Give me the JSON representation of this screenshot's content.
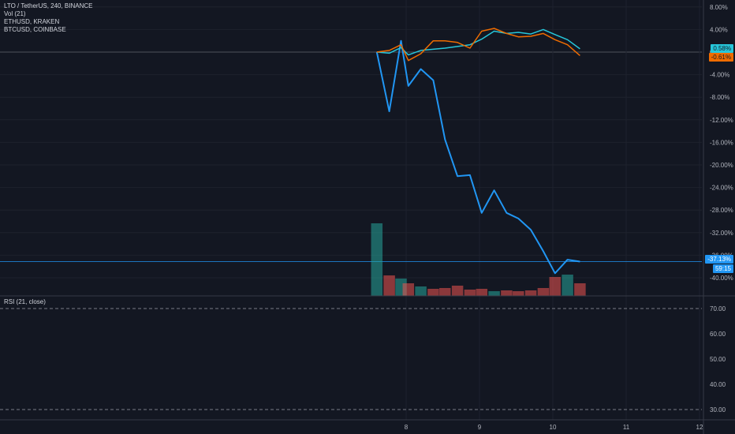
{
  "legend": {
    "main": "LTO / TetherUS, 240, BINANCE",
    "vol": "Vol (21)",
    "s1": "ETHUSD, KRAKEN",
    "s2": "BTCUSD, COINBASE"
  },
  "rsi_label": "RSI (21, close)",
  "badges": {
    "eth": "0.58%",
    "btc": "-0.61%",
    "lto": "-37.13%",
    "countdown": "59:15"
  },
  "colors": {
    "background": "#131722",
    "lto": "#2196f3",
    "eth": "#26c6da",
    "btc": "#ef6c00",
    "vol_up": "#26a69a",
    "vol_down": "#ef5350"
  },
  "chart_data": {
    "type": "line",
    "x_ticks": [
      "8",
      "9",
      "10",
      "11",
      "12"
    ],
    "y_ticks": [
      "8.00%",
      "4.00%",
      "0.00%",
      "-4.00%",
      "-8.00%",
      "-12.00%",
      "-16.00%",
      "-20.00%",
      "-24.00%",
      "-28.00%",
      "-32.00%",
      "-36.00%",
      "-40.00%"
    ],
    "ylim": [
      -42,
      9
    ],
    "x": [
      7.6,
      7.77,
      7.93,
      8.03,
      8.2,
      8.37,
      8.53,
      8.7,
      8.87,
      9.03,
      9.2,
      9.37,
      9.53,
      9.7,
      9.87,
      10.03,
      10.2,
      10.37
    ],
    "series": [
      {
        "name": "LTO / TetherUS",
        "color": "#2196f3",
        "values": [
          0,
          -10.5,
          2,
          -6,
          -3,
          -5,
          -15.5,
          -22,
          -21.8,
          -28.5,
          -24.5,
          -28.5,
          -29.5,
          -31.5,
          -35.3,
          -39.2,
          -36.8,
          -37.13
        ]
      },
      {
        "name": "ETHUSD, KRAKEN",
        "color": "#26c6da",
        "values": [
          0,
          -0.2,
          0.8,
          -0.5,
          0.3,
          0.5,
          0.7,
          1,
          1.3,
          2.3,
          3.7,
          3.3,
          3.5,
          3.2,
          4,
          3.1,
          2.2,
          0.58
        ]
      },
      {
        "name": "BTCUSD, COINBASE",
        "color": "#ef6c00",
        "values": [
          0,
          0.3,
          1.3,
          -1.5,
          -0.3,
          2,
          2,
          1.7,
          0.7,
          3.7,
          4.2,
          3.3,
          2.7,
          2.8,
          3.3,
          2.2,
          1.3,
          -0.61
        ]
      }
    ],
    "volume": {
      "values": [
        92,
        26,
        22,
        16,
        12,
        9,
        10,
        13,
        8,
        9,
        6,
        7,
        6,
        7,
        10,
        24,
        27,
        16
      ],
      "up": [
        true,
        false,
        true,
        false,
        true,
        false,
        false,
        false,
        false,
        false,
        true,
        false,
        false,
        false,
        false,
        false,
        true,
        false
      ]
    },
    "rsi": {
      "y_ticks": [
        "70.00",
        "60.00",
        "50.00",
        "40.00",
        "30.00"
      ],
      "bands": [
        70,
        30
      ],
      "ylim": [
        26,
        76
      ]
    }
  }
}
